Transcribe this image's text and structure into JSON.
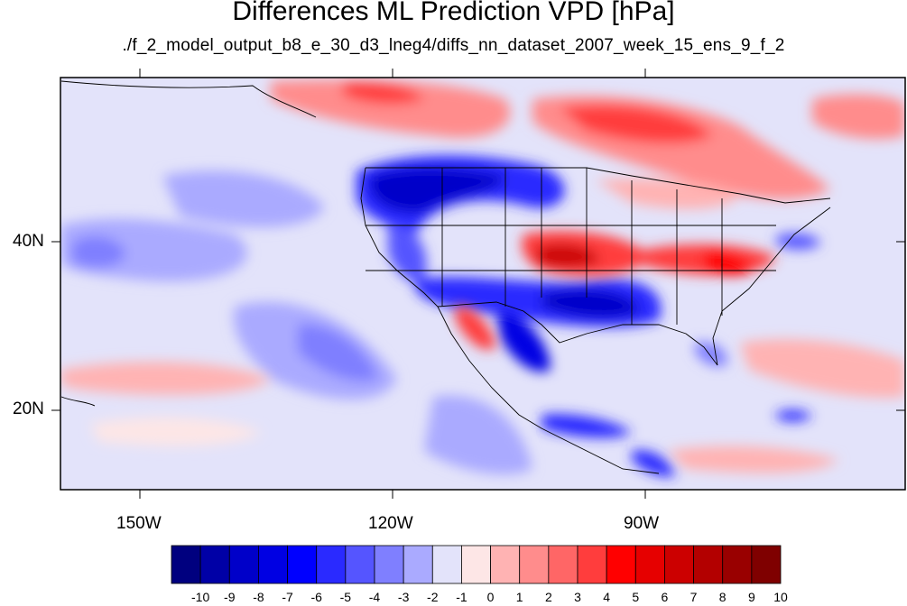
{
  "title": "Differences ML Prediction VPD [hPa]",
  "subtitle": "./f_2_model_output_b8_e_30_d3_lneg4/diffs_nn_dataset_2007_week_15_ens_9_f_2",
  "axes": {
    "lon_labels": [
      "150W",
      "120W",
      "90W"
    ],
    "lat_labels": [
      "40N",
      "20N"
    ]
  },
  "colorbar": {
    "labels": [
      "-10",
      "-9",
      "-8",
      "-7",
      "-6",
      "-5",
      "-4",
      "-3",
      "-2",
      "-1",
      "0",
      "1",
      "2",
      "3",
      "4",
      "5",
      "6",
      "7",
      "8",
      "9",
      "10"
    ],
    "colors": [
      "#00007f",
      "#0000a6",
      "#0000c9",
      "#0000e3",
      "#0000ff",
      "#2a2aff",
      "#5555ff",
      "#7f7fff",
      "#aaaaff",
      "#e3e3fa",
      "#fde6e6",
      "#ffb3b3",
      "#ff8c8c",
      "#ff6666",
      "#ff3d3d",
      "#ff0000",
      "#e60000",
      "#cc0000",
      "#b30000",
      "#990000",
      "#7f0000"
    ]
  }
}
